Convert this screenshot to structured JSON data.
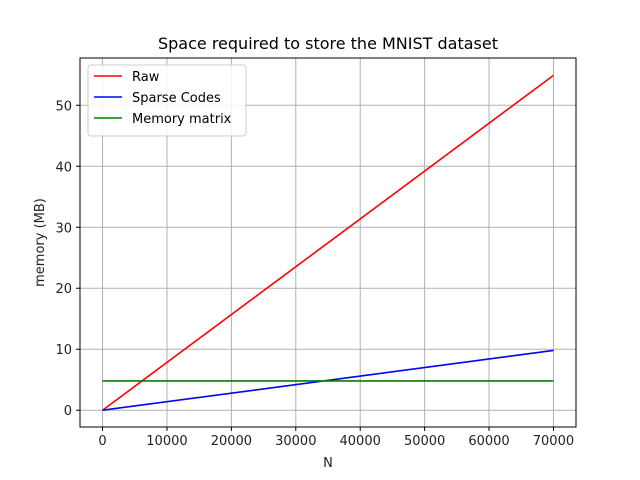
{
  "chart_data": {
    "type": "line",
    "title": "Space required to store the MNIST dataset",
    "xlabel": "N",
    "ylabel": "memory (MB)",
    "xlim": [
      -3500,
      73500
    ],
    "ylim": [
      -2.75,
      57.75
    ],
    "xticks": [
      0,
      10000,
      20000,
      30000,
      40000,
      50000,
      60000,
      70000
    ],
    "yticks": [
      0,
      10,
      20,
      30,
      40,
      50
    ],
    "grid": true,
    "legend_position": "upper-left",
    "series": [
      {
        "name": "Raw",
        "color": "#ff0000",
        "x": [
          0,
          70000
        ],
        "y": [
          0,
          54.9
        ]
      },
      {
        "name": "Sparse Codes",
        "color": "#0000ff",
        "x": [
          0,
          70000
        ],
        "y": [
          0,
          9.8
        ]
      },
      {
        "name": "Memory matrix",
        "color": "#008000",
        "x": [
          0,
          70000
        ],
        "y": [
          4.8,
          4.8
        ]
      }
    ]
  }
}
